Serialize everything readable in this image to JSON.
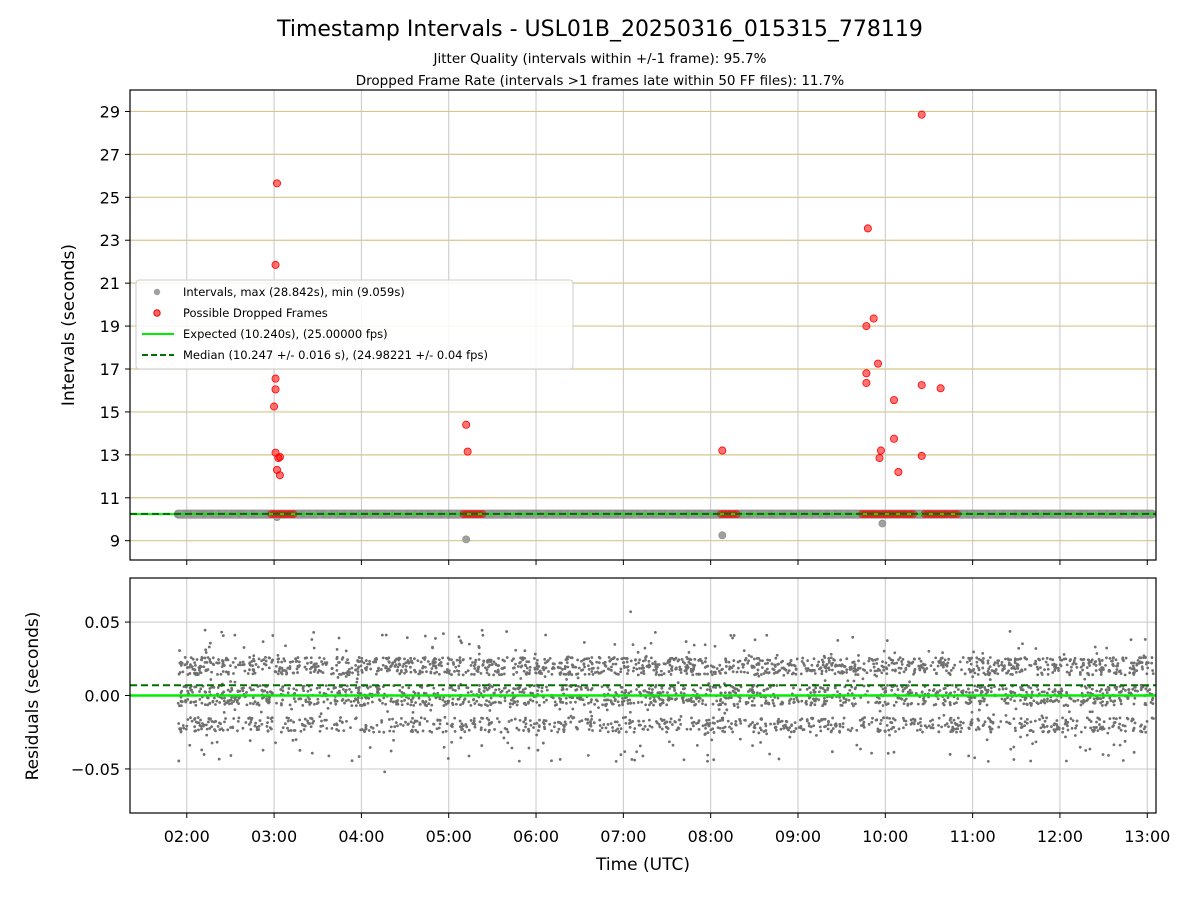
{
  "chart_data": [
    {
      "type": "scatter",
      "title": "Timestamp Intervals - USL01B_20250316_015315_778119",
      "subtitle_lines": [
        "Jitter Quality (intervals within +/-1 frame): 95.7%",
        "Dropped Frame Rate (intervals >1 frames late within 50 FF files): 11.7%"
      ],
      "xlabel": "",
      "ylabel": "Intervals (seconds)",
      "xlim": [
        "01:21",
        "13:06"
      ],
      "ylim": [
        8.1,
        30.0
      ],
      "x_tick_labels": [
        "02:00",
        "03:00",
        "04:00",
        "05:00",
        "06:00",
        "07:00",
        "08:00",
        "09:00",
        "10:00",
        "11:00",
        "12:00",
        "13:00"
      ],
      "y_ticks": [
        9,
        11,
        13,
        15,
        17,
        19,
        21,
        23,
        25,
        27,
        29
      ],
      "grid": true,
      "legend_position": "center-left",
      "legend": [
        {
          "label": "Intervals, max (28.842s), min (9.059s)",
          "marker": "circle",
          "color": "#a0a0a0"
        },
        {
          "label": "Possible Dropped Frames",
          "marker": "circle",
          "color": "#ff0000"
        },
        {
          "label": "Expected (10.240s), (25.00000 fps)",
          "marker": "line",
          "color": "#00ee00"
        },
        {
          "label": "Median (10.247 +/- 0.016 s), (24.98221 +/- 0.04 fps)",
          "marker": "dashed-line",
          "color": "#007000"
        }
      ],
      "series": [
        {
          "name": "Intervals, max (28.842s), min (9.059s)",
          "baseline_value": 10.24,
          "x_range": [
            "01:54",
            "13:06"
          ],
          "outliers": [
            {
              "x": "03:02",
              "y": 10.1
            },
            {
              "x": "05:12",
              "y": 9.06
            },
            {
              "x": "08:08",
              "y": 9.25
            },
            {
              "x": "09:58",
              "y": 9.8
            }
          ]
        },
        {
          "name": "Possible Dropped Frames",
          "points": [
            {
              "x": "03:01",
              "y": 21.85
            },
            {
              "x": "03:02",
              "y": 25.65
            },
            {
              "x": "03:01",
              "y": 16.55
            },
            {
              "x": "03:01",
              "y": 16.05
            },
            {
              "x": "03:00",
              "y": 15.25
            },
            {
              "x": "03:01",
              "y": 13.1
            },
            {
              "x": "03:03",
              "y": 12.85
            },
            {
              "x": "03:04",
              "y": 12.9
            },
            {
              "x": "03:02",
              "y": 12.3
            },
            {
              "x": "03:04",
              "y": 12.05
            },
            {
              "x": "05:12",
              "y": 14.4
            },
            {
              "x": "05:13",
              "y": 13.15
            },
            {
              "x": "08:08",
              "y": 13.2
            },
            {
              "x": "09:48",
              "y": 23.55
            },
            {
              "x": "09:52",
              "y": 19.35
            },
            {
              "x": "09:47",
              "y": 19.0
            },
            {
              "x": "09:55",
              "y": 17.25
            },
            {
              "x": "09:47",
              "y": 16.8
            },
            {
              "x": "09:47",
              "y": 16.35
            },
            {
              "x": "10:25",
              "y": 28.85
            },
            {
              "x": "10:25",
              "y": 16.25
            },
            {
              "x": "10:38",
              "y": 16.1
            },
            {
              "x": "10:06",
              "y": 15.55
            },
            {
              "x": "10:06",
              "y": 13.75
            },
            {
              "x": "09:57",
              "y": 13.2
            },
            {
              "x": "09:56",
              "y": 12.85
            },
            {
              "x": "10:25",
              "y": 12.95
            },
            {
              "x": "10:09",
              "y": 12.2
            }
          ],
          "baseline_clusters": [
            [
              "02:58",
              "03:15"
            ],
            [
              "05:10",
              "05:24"
            ],
            [
              "08:07",
              "08:20"
            ],
            [
              "09:44",
              "10:21"
            ],
            [
              "10:27",
              "10:43"
            ],
            [
              "10:45",
              "10:51"
            ]
          ]
        },
        {
          "name": "Expected (10.240s), (25.00000 fps)",
          "y": 10.24
        },
        {
          "name": "Median (10.247 +/- 0.016 s), (24.98221 +/- 0.04 fps)",
          "y": 10.247
        }
      ]
    },
    {
      "type": "scatter",
      "xlabel": "Time (UTC)",
      "ylabel": "Residuals (seconds)",
      "xlim": [
        "01:21",
        "13:06"
      ],
      "ylim": [
        -0.08,
        0.08
      ],
      "x_tick_labels": [
        "02:00",
        "03:00",
        "04:00",
        "05:00",
        "06:00",
        "07:00",
        "08:00",
        "09:00",
        "10:00",
        "11:00",
        "12:00",
        "13:00"
      ],
      "y_tick_labels": [
        "−0.05",
        "0.00",
        "0.05"
      ],
      "y_ticks": [
        -0.05,
        0.0,
        0.05
      ],
      "grid": true,
      "series": [
        {
          "name": "Residuals",
          "x_range": [
            "01:54",
            "13:06"
          ],
          "bands": [
            0.02,
            0.0,
            -0.02
          ],
          "spread": [
            -0.052,
            0.057
          ]
        },
        {
          "name": "Expected",
          "y": 0.0
        },
        {
          "name": "Median",
          "y": 0.007
        }
      ]
    }
  ],
  "colors": {
    "gray_points": "#a0a0a0",
    "red_points": "#ff0000",
    "expected_line": "#00ee00",
    "median_line": "#007000",
    "hgrid_top": "#d6c58c",
    "grid": "#c8c8c8"
  }
}
